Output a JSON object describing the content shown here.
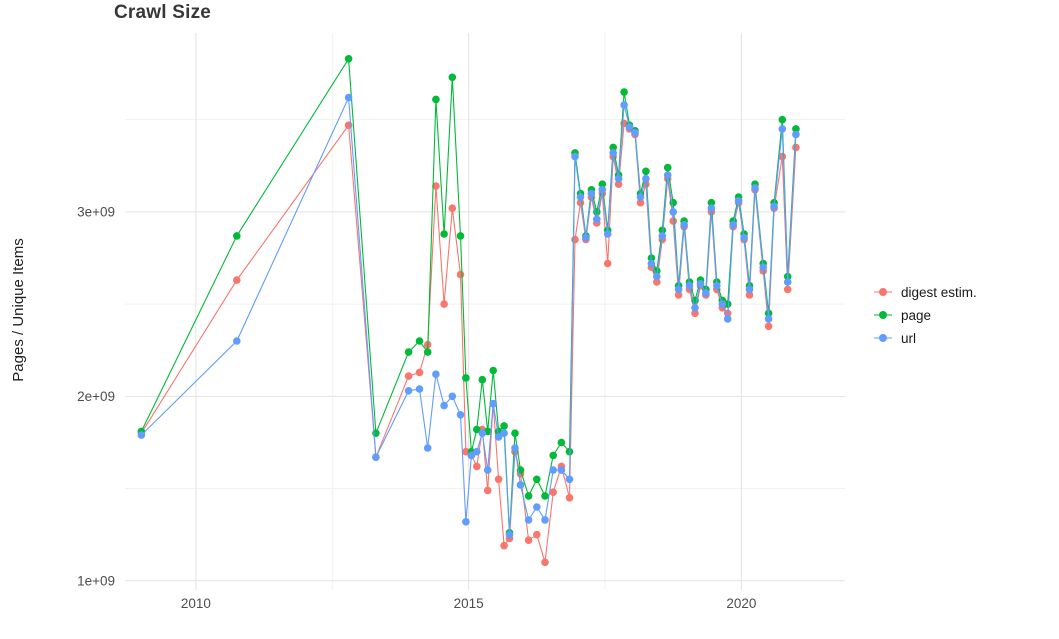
{
  "title": "Crawl Size",
  "ylabel": "Pages / Unique Items",
  "legend": {
    "entries": [
      {
        "label": "digest estim.",
        "color": "#F8766D"
      },
      {
        "label": "page",
        "color": "#00BA38"
      },
      {
        "label": "url",
        "color": "#619CFF"
      }
    ]
  },
  "chart_data": {
    "type": "line",
    "title": "Crawl Size",
    "xlabel": "",
    "ylabel": "Pages / Unique Items",
    "legend_position": "right",
    "grid": true,
    "xlim": [
      2008.7,
      2021.9
    ],
    "ylim": [
      950000000.0,
      3970000000.0
    ],
    "x_ticks": [
      2010,
      2015,
      2020
    ],
    "x_tick_labels": [
      "2010",
      "2015",
      "2020"
    ],
    "y_ticks": [
      1000000000.0,
      2000000000.0,
      3000000000.0
    ],
    "y_tick_labels": [
      "1e+09",
      "2e+09",
      "3e+09"
    ],
    "x_minor_ticks": [
      2012.5,
      2017.5
    ],
    "y_minor_ticks": [
      1500000000.0,
      2500000000.0,
      3500000000.0
    ],
    "x": [
      2009.0,
      2010.75,
      2012.8,
      2013.3,
      2013.9,
      2014.1,
      2014.25,
      2014.4,
      2014.55,
      2014.7,
      2014.85,
      2014.95,
      2015.05,
      2015.15,
      2015.25,
      2015.35,
      2015.45,
      2015.55,
      2015.65,
      2015.75,
      2015.85,
      2015.95,
      2016.1,
      2016.25,
      2016.4,
      2016.55,
      2016.7,
      2016.85,
      2016.95,
      2017.05,
      2017.15,
      2017.25,
      2017.35,
      2017.45,
      2017.55,
      2017.65,
      2017.75,
      2017.85,
      2017.95,
      2018.05,
      2018.15,
      2018.25,
      2018.35,
      2018.45,
      2018.55,
      2018.65,
      2018.75,
      2018.85,
      2018.95,
      2019.05,
      2019.15,
      2019.25,
      2019.35,
      2019.45,
      2019.55,
      2019.65,
      2019.75,
      2019.85,
      2019.95,
      2020.05,
      2020.15,
      2020.25,
      2020.4,
      2020.5,
      2020.6,
      2020.75,
      2020.85,
      2021.0
    ],
    "series": [
      {
        "name": "digest estim.",
        "color": "#F8766D",
        "values": [
          1800000000.0,
          2630000000.0,
          3470000000.0,
          1670000000.0,
          2110000000.0,
          2130000000.0,
          2280000000.0,
          3140000000.0,
          2500000000.0,
          3020000000.0,
          2660000000.0,
          1700000000.0,
          1680000000.0,
          1620000000.0,
          1820000000.0,
          1490000000.0,
          1960000000.0,
          1550000000.0,
          1190000000.0,
          1230000000.0,
          1700000000.0,
          1580000000.0,
          1220000000.0,
          1250000000.0,
          1100000000.0,
          1480000000.0,
          1620000000.0,
          1450000000.0,
          2850000000.0,
          3050000000.0,
          2850000000.0,
          3080000000.0,
          2940000000.0,
          3100000000.0,
          2720000000.0,
          3300000000.0,
          3150000000.0,
          3480000000.0,
          3450000000.0,
          3420000000.0,
          3050000000.0,
          3150000000.0,
          2700000000.0,
          2620000000.0,
          2850000000.0,
          3180000000.0,
          2950000000.0,
          2550000000.0,
          2920000000.0,
          2580000000.0,
          2450000000.0,
          2600000000.0,
          2550000000.0,
          3000000000.0,
          2580000000.0,
          2480000000.0,
          2450000000.0,
          2920000000.0,
          3050000000.0,
          2850000000.0,
          2550000000.0,
          3120000000.0,
          2680000000.0,
          2380000000.0,
          3020000000.0,
          3300000000.0,
          2580000000.0,
          3350000000.0
        ]
      },
      {
        "name": "page",
        "color": "#00BA38",
        "values": [
          1810000000.0,
          2870000000.0,
          3830000000.0,
          1800000000.0,
          2240000000.0,
          2300000000.0,
          2240000000.0,
          3610000000.0,
          2880000000.0,
          3730000000.0,
          2870000000.0,
          2100000000.0,
          1700000000.0,
          1820000000.0,
          2090000000.0,
          1810000000.0,
          2140000000.0,
          1810000000.0,
          1840000000.0,
          1260000000.0,
          1800000000.0,
          1600000000.0,
          1460000000.0,
          1550000000.0,
          1460000000.0,
          1680000000.0,
          1750000000.0,
          1700000000.0,
          3320000000.0,
          3100000000.0,
          2870000000.0,
          3120000000.0,
          3000000000.0,
          3150000000.0,
          2900000000.0,
          3350000000.0,
          3200000000.0,
          3650000000.0,
          3470000000.0,
          3440000000.0,
          3100000000.0,
          3220000000.0,
          2750000000.0,
          2680000000.0,
          2900000000.0,
          3240000000.0,
          3050000000.0,
          2600000000.0,
          2950000000.0,
          2620000000.0,
          2520000000.0,
          2630000000.0,
          2580000000.0,
          3050000000.0,
          2620000000.0,
          2520000000.0,
          2500000000.0,
          2950000000.0,
          3080000000.0,
          2880000000.0,
          2600000000.0,
          3150000000.0,
          2720000000.0,
          2450000000.0,
          3050000000.0,
          3500000000.0,
          2650000000.0,
          3450000000.0
        ]
      },
      {
        "name": "url",
        "color": "#619CFF",
        "values": [
          1790000000.0,
          2300000000.0,
          3620000000.0,
          1670000000.0,
          2030000000.0,
          2040000000.0,
          1720000000.0,
          2120000000.0,
          1950000000.0,
          2000000000.0,
          1900000000.0,
          1320000000.0,
          1680000000.0,
          1700000000.0,
          1800000000.0,
          1600000000.0,
          1960000000.0,
          1780000000.0,
          1800000000.0,
          1250000000.0,
          1720000000.0,
          1520000000.0,
          1330000000.0,
          1400000000.0,
          1330000000.0,
          1600000000.0,
          1600000000.0,
          1550000000.0,
          3300000000.0,
          3080000000.0,
          2860000000.0,
          3100000000.0,
          2960000000.0,
          3120000000.0,
          2880000000.0,
          3320000000.0,
          3180000000.0,
          3580000000.0,
          3460000000.0,
          3430000000.0,
          3080000000.0,
          3180000000.0,
          2720000000.0,
          2650000000.0,
          2870000000.0,
          3200000000.0,
          3000000000.0,
          2580000000.0,
          2930000000.0,
          2600000000.0,
          2480000000.0,
          2610000000.0,
          2560000000.0,
          3020000000.0,
          2600000000.0,
          2500000000.0,
          2420000000.0,
          2930000000.0,
          3060000000.0,
          2860000000.0,
          2580000000.0,
          3130000000.0,
          2700000000.0,
          2420000000.0,
          3030000000.0,
          3450000000.0,
          2620000000.0,
          3420000000.0
        ]
      }
    ]
  }
}
